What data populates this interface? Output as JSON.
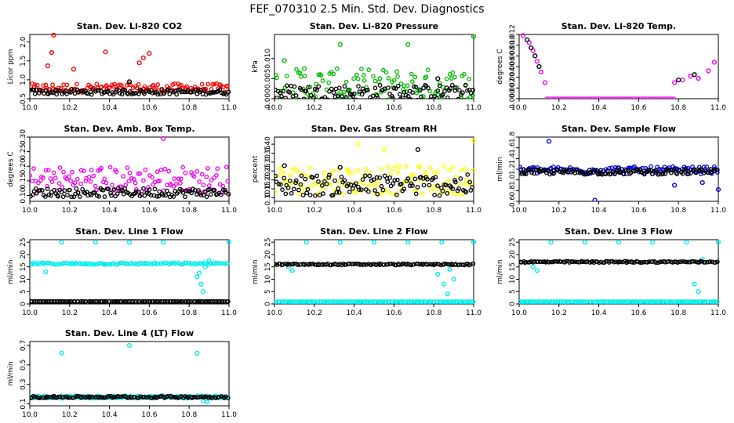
{
  "page_title": "FEF_070310  2.5 Min. Std. Dev. Diagnostics",
  "chart_data": [
    {
      "type": "scatter",
      "title": "Stan. Dev. Li-820 CO2",
      "ylabel": "Licor ppm",
      "xlim": [
        10.0,
        11.0
      ],
      "ylim": [
        0.5,
        2.2
      ],
      "xticks": [
        "10.0",
        "10.2",
        "10.4",
        "10.6",
        "10.8",
        "11.0"
      ],
      "yticks": [
        "0.5",
        "1.0",
        "1.5",
        "2.0"
      ],
      "series": [
        {
          "name": "primary",
          "color": "#ff0000",
          "base": 0.78,
          "spread": 0.12,
          "points": [
            [
              10.12,
              2.18
            ],
            [
              10.11,
              1.72
            ],
            [
              10.38,
              1.74
            ],
            [
              10.57,
              1.58
            ],
            [
              10.09,
              1.37
            ],
            [
              10.6,
              1.7
            ],
            [
              10.22,
              1.28
            ],
            [
              10.55,
              1.45
            ]
          ]
        },
        {
          "name": "reference",
          "color": "#000000",
          "base": 0.68,
          "spread": 0.07,
          "points": [
            [
              10.5,
              0.95
            ]
          ]
        }
      ]
    },
    {
      "type": "scatter",
      "title": "Stan. Dev. Li-820 Pressure",
      "ylabel": "kPa",
      "xlim": [
        10.0,
        11.0
      ],
      "ylim": [
        0.0,
        0.016
      ],
      "xticks": [
        "10.0",
        "10.2",
        "10.4",
        "10.6",
        "10.8",
        "11.0"
      ],
      "yticks": [
        "0.000",
        "0.005",
        "0.010"
      ],
      "series": [
        {
          "name": "primary",
          "color": "#00bb00",
          "base": 0.003,
          "spread": 0.0045,
          "points": [
            [
              10.33,
              0.0135
            ],
            [
              10.67,
              0.0135
            ],
            [
              11.0,
              0.0155
            ],
            [
              10.05,
              0.0095
            ],
            [
              10.15,
              0.0075
            ]
          ]
        },
        {
          "name": "reference",
          "color": "#000000",
          "base": 0.0015,
          "spread": 0.002,
          "points": [
            [
              10.82,
              0.005
            ]
          ]
        }
      ]
    },
    {
      "type": "scatter",
      "title": "Stan. Dev. Li-820 Temp.",
      "ylabel": "degrees C",
      "xlim": [
        10.0,
        11.0
      ],
      "ylim": [
        0.0,
        0.012
      ],
      "xticks": [
        "10.0",
        "10.2",
        "10.4",
        "10.6",
        "10.8",
        "11.0"
      ],
      "yticks": [
        "0.000",
        "0.002",
        "0.004",
        "0.006",
        "0.008",
        "0.010",
        "0.012"
      ],
      "series": [
        {
          "name": "primary",
          "color": "#ee00ee",
          "base": 0.0,
          "spread": 0.0,
          "points": [
            [
              10.02,
              0.0118
            ],
            [
              10.05,
              0.0105
            ],
            [
              10.07,
              0.009
            ],
            [
              10.09,
              0.007
            ],
            [
              10.11,
              0.005
            ],
            [
              10.13,
              0.003
            ],
            [
              10.78,
              0.003
            ],
            [
              10.82,
              0.0035
            ],
            [
              10.86,
              0.0042
            ],
            [
              10.9,
              0.0038
            ],
            [
              10.95,
              0.0052
            ],
            [
              10.98,
              0.0068
            ]
          ]
        },
        {
          "name": "reference",
          "color": "#000000",
          "base": 0.0,
          "spread": 0.0,
          "points": [
            [
              10.04,
              0.011
            ],
            [
              10.06,
              0.0095
            ],
            [
              10.08,
              0.008
            ],
            [
              10.1,
              0.006
            ],
            [
              10.8,
              0.0035
            ],
            [
              10.88,
              0.0045
            ]
          ]
        }
      ]
    },
    {
      "type": "scatter",
      "title": "Stan. Dev. Amb. Box Temp.",
      "ylabel": "degrees C",
      "xlim": [
        10.0,
        11.0
      ],
      "ylim": [
        0.08,
        0.3
      ],
      "xticks": [
        "10.0",
        "10.2",
        "10.4",
        "10.6",
        "10.8",
        "11.0"
      ],
      "yticks": [
        "0.10",
        "0.15",
        "0.20",
        "0.25",
        "0.30"
      ],
      "series": [
        {
          "name": "primary",
          "color": "#ee00ee",
          "base": 0.155,
          "spread": 0.045,
          "points": [
            [
              10.67,
              0.295
            ]
          ]
        },
        {
          "name": "reference",
          "color": "#000000",
          "base": 0.11,
          "spread": 0.015,
          "points": []
        }
      ]
    },
    {
      "type": "scatter",
      "title": "Stan. Dev. Gas Stream RH",
      "ylabel": "percent",
      "xlim": [
        10.0,
        11.0
      ],
      "ylim": [
        0.08,
        0.44
      ],
      "xticks": [
        "10.0",
        "10.2",
        "10.4",
        "10.6",
        "10.8",
        "11.0"
      ],
      "yticks": [
        "0.10",
        "0.15",
        "0.20",
        "0.25",
        "0.30",
        "0.35",
        "0.40"
      ],
      "series": [
        {
          "name": "primary",
          "color": "#ffff00",
          "base": 0.2,
          "spread": 0.08,
          "points": [
            [
              10.42,
              0.4
            ],
            [
              11.0,
              0.42
            ],
            [
              10.55,
              0.37
            ]
          ]
        },
        {
          "name": "reference",
          "color": "#000000",
          "base": 0.17,
          "spread": 0.06,
          "points": [
            [
              10.72,
              0.37
            ],
            [
              10.05,
              0.28
            ],
            [
              10.33,
              0.27
            ]
          ]
        }
      ]
    },
    {
      "type": "scatter",
      "title": "Stan. Dev. Sample Flow",
      "ylabel": "ml/min",
      "xlim": [
        10.0,
        11.0
      ],
      "ylim": [
        0.6,
        1.8
      ],
      "xticks": [
        "10.0",
        "10.2",
        "10.4",
        "10.6",
        "10.8",
        "11.0"
      ],
      "yticks": [
        "0.6",
        "0.8",
        "1.0",
        "1.2",
        "1.4",
        "1.6",
        "1.8"
      ],
      "series": [
        {
          "name": "primary",
          "color": "#0000dd",
          "base": 1.18,
          "spread": 0.07,
          "points": [
            [
              10.15,
              1.72
            ],
            [
              10.38,
              0.62
            ],
            [
              10.78,
              0.9
            ],
            [
              10.92,
              0.95
            ],
            [
              11.0,
              0.82
            ]
          ]
        },
        {
          "name": "reference",
          "color": "#000000",
          "base": 1.15,
          "spread": 0.05,
          "points": []
        }
      ]
    },
    {
      "type": "scatter",
      "title": "Stan. Dev. Line 1 Flow",
      "ylabel": "ml/min",
      "xlim": [
        10.0,
        11.0
      ],
      "ylim": [
        0.0,
        26.0
      ],
      "xticks": [
        "10.0",
        "10.2",
        "10.4",
        "10.6",
        "10.8",
        "11.0"
      ],
      "yticks": [
        "0",
        "5",
        "10",
        "15",
        "20",
        "25"
      ],
      "series": [
        {
          "name": "primary",
          "color": "#00eeee",
          "base": 16.3,
          "spread": 0.4,
          "points": [
            [
              10.16,
              25.0
            ],
            [
              10.33,
              25.0
            ],
            [
              10.5,
              25.0
            ],
            [
              10.67,
              25.0
            ],
            [
              11.0,
              25.0
            ],
            [
              10.84,
              11.0
            ],
            [
              10.86,
              8.0
            ],
            [
              10.87,
              5.0
            ],
            [
              10.85,
              12.5
            ],
            [
              10.88,
              15.0
            ],
            [
              10.9,
              17.5
            ],
            [
              10.08,
              13.0
            ]
          ]
        },
        {
          "name": "reference",
          "color": "#000000",
          "base": 1.0,
          "spread": 0.0,
          "points": []
        }
      ]
    },
    {
      "type": "scatter",
      "title": "Stan. Dev. Line 2 Flow",
      "ylabel": "ml/min",
      "xlim": [
        10.0,
        11.0
      ],
      "ylim": [
        0.0,
        26.0
      ],
      "xticks": [
        "10.0",
        "10.2",
        "10.4",
        "10.6",
        "10.8",
        "11.0"
      ],
      "yticks": [
        "0",
        "5",
        "10",
        "15",
        "20",
        "25"
      ],
      "series": [
        {
          "name": "primary",
          "color": "#00eeee",
          "base": 0.9,
          "spread": 0.0,
          "points": [
            [
              10.16,
              25.0
            ],
            [
              10.33,
              25.0
            ],
            [
              10.5,
              25.0
            ],
            [
              10.67,
              25.0
            ],
            [
              10.84,
              25.0
            ],
            [
              11.0,
              25.0
            ],
            [
              10.82,
              12.0
            ],
            [
              10.85,
              8.0
            ],
            [
              10.87,
              4.0
            ],
            [
              10.88,
              14.0
            ],
            [
              10.9,
              10.0
            ],
            [
              10.07,
              15.0
            ],
            [
              10.09,
              13.5
            ]
          ]
        },
        {
          "name": "reference",
          "color": "#000000",
          "base": 16.0,
          "spread": 0.3,
          "points": []
        }
      ]
    },
    {
      "type": "scatter",
      "title": "Stan. Dev. Line 3 Flow",
      "ylabel": "ml/min",
      "xlim": [
        10.0,
        11.0
      ],
      "ylim": [
        0.0,
        26.0
      ],
      "xticks": [
        "10.0",
        "10.2",
        "10.4",
        "10.6",
        "10.8",
        "11.0"
      ],
      "yticks": [
        "0",
        "5",
        "10",
        "15",
        "20",
        "25"
      ],
      "series": [
        {
          "name": "primary",
          "color": "#00eeee",
          "base": 0.9,
          "spread": 0.0,
          "points": [
            [
              10.16,
              25.0
            ],
            [
              10.33,
              25.0
            ],
            [
              10.5,
              25.0
            ],
            [
              10.67,
              25.0
            ],
            [
              10.84,
              25.0
            ],
            [
              11.0,
              25.0
            ],
            [
              10.88,
              8.0
            ],
            [
              10.9,
              5.0
            ],
            [
              10.86,
              17.0
            ],
            [
              10.92,
              18.0
            ],
            [
              10.07,
              15.0
            ],
            [
              10.09,
              13.5
            ]
          ]
        },
        {
          "name": "reference",
          "color": "#000000",
          "base": 17.0,
          "spread": 0.3,
          "points": []
        }
      ]
    },
    {
      "type": "scatter",
      "title": "Stan. Dev. Line 4 (LT) Flow",
      "ylabel": "ml/min",
      "xlim": [
        10.0,
        11.0
      ],
      "ylim": [
        0.08,
        0.74
      ],
      "xticks": [
        "10.0",
        "10.2",
        "10.4",
        "10.6",
        "10.8",
        "11.0"
      ],
      "yticks": [
        "0.1",
        "0.3",
        "0.5",
        "0.7"
      ],
      "series": [
        {
          "name": "primary",
          "color": "#00eeee",
          "base": 0.17,
          "spread": 0.015,
          "points": [
            [
              10.16,
              0.62
            ],
            [
              10.5,
              0.7
            ],
            [
              10.84,
              0.62
            ],
            [
              10.87,
              0.13
            ],
            [
              10.89,
              0.12
            ]
          ]
        },
        {
          "name": "reference",
          "color": "#000000",
          "base": 0.17,
          "spread": 0.01,
          "points": []
        }
      ]
    }
  ]
}
